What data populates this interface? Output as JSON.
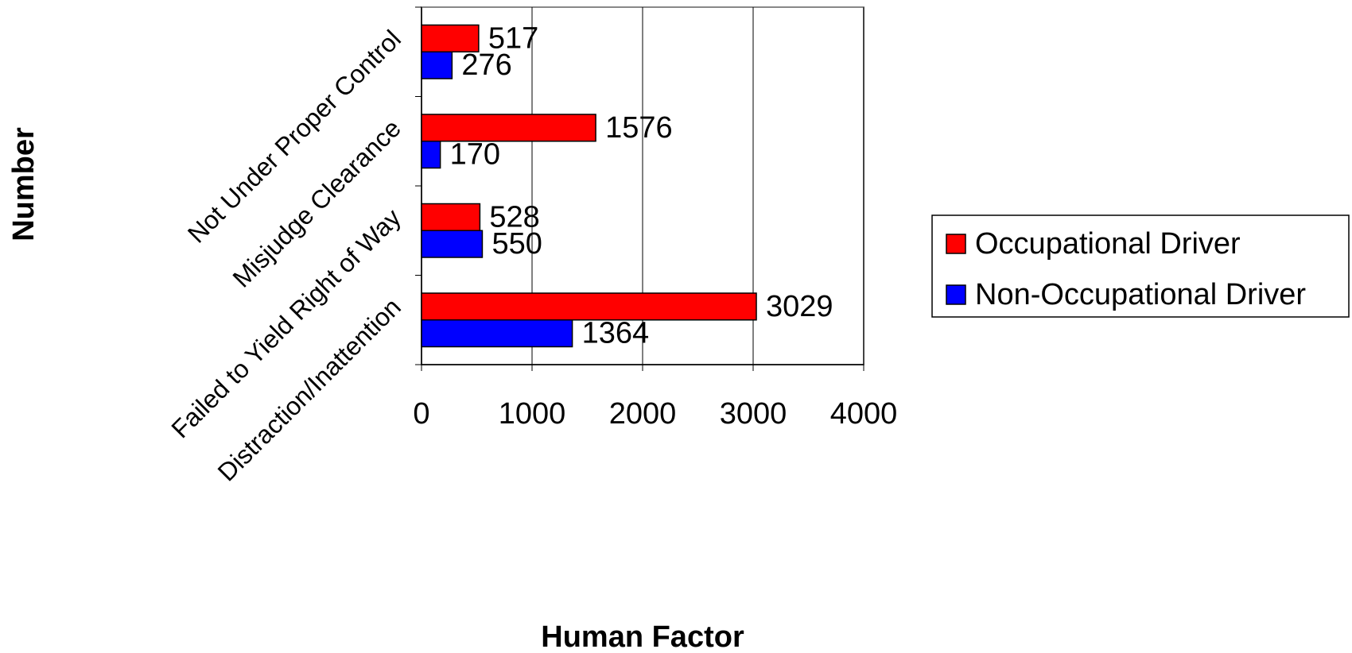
{
  "chart_data": {
    "type": "hbar",
    "x_label": "Human Factor",
    "y_label": "Number",
    "categories": [
      "Distraction/Inattention",
      "Failed to Yield Right of Way",
      "Misjudge Clearance",
      "Not Under Proper Control"
    ],
    "series": [
      {
        "name": "Occupational Driver",
        "color": "#ff0000",
        "values": [
          3029,
          528,
          1576,
          517
        ]
      },
      {
        "name": "Non-Occupational Driver",
        "color": "#0000ff",
        "values": [
          1364,
          550,
          170,
          276
        ]
      }
    ],
    "xlim": [
      0,
      4000
    ],
    "xticks": [
      0,
      1000,
      2000,
      3000,
      4000
    ],
    "grid": true,
    "legend": "right"
  }
}
